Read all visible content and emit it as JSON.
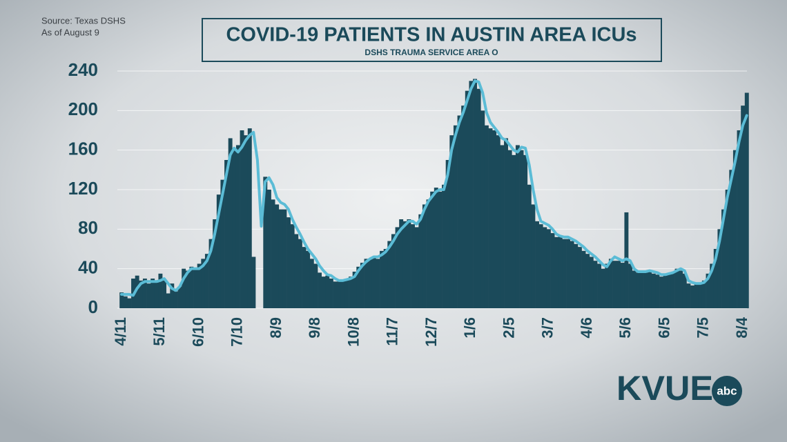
{
  "chart_data": {
    "type": "bar-line",
    "title": "COVID-19 PATIENTS IN AUSTIN AREA ICUs",
    "subtitle": "DSHS TRAUMA SERVICE AREA O",
    "annotations": [
      "Source: Texas DSHS",
      "As of August 9"
    ],
    "logo": {
      "text": "KVUE",
      "badge": "abc"
    },
    "categories": [
      "4/11",
      null,
      null,
      null,
      null,
      null,
      null,
      null,
      null,
      null,
      "5/11",
      null,
      null,
      null,
      null,
      null,
      null,
      null,
      null,
      null,
      "6/10",
      null,
      null,
      null,
      null,
      null,
      null,
      null,
      null,
      null,
      "7/10",
      null,
      null,
      null,
      null,
      null,
      null,
      null,
      null,
      null,
      "8/9",
      null,
      null,
      null,
      null,
      null,
      null,
      null,
      null,
      null,
      "9/8",
      null,
      null,
      null,
      null,
      null,
      null,
      null,
      null,
      null,
      "10/8",
      null,
      null,
      null,
      null,
      null,
      null,
      null,
      null,
      null,
      "11/7",
      null,
      null,
      null,
      null,
      null,
      null,
      null,
      null,
      null,
      "12/7",
      null,
      null,
      null,
      null,
      null,
      null,
      null,
      null,
      null,
      "1/6",
      null,
      null,
      null,
      null,
      null,
      null,
      null,
      null,
      null,
      "2/5",
      null,
      null,
      null,
      null,
      null,
      null,
      null,
      null,
      null,
      "3/7",
      null,
      null,
      null,
      null,
      null,
      null,
      null,
      null,
      null,
      "4/6",
      null,
      null,
      null,
      null,
      null,
      null,
      null,
      null,
      null,
      "5/6",
      null,
      null,
      null,
      null,
      null,
      null,
      null,
      null,
      null,
      "6/5",
      null,
      null,
      null,
      null,
      null,
      null,
      null,
      null,
      null,
      "7/5",
      null,
      null,
      null,
      null,
      null,
      null,
      null,
      null,
      null,
      "8/4",
      null
    ],
    "series": [
      {
        "type": "bar",
        "color": "#1b4a5a",
        "values": [
          16,
          12,
          10,
          30,
          33,
          28,
          30,
          25,
          30,
          26,
          35,
          28,
          15,
          25,
          17,
          22,
          40,
          38,
          42,
          40,
          45,
          50,
          55,
          70,
          90,
          115,
          130,
          150,
          172,
          160,
          165,
          180,
          175,
          182,
          52,
          null,
          null,
          133,
          120,
          110,
          105,
          100,
          100,
          92,
          85,
          75,
          70,
          62,
          58,
          50,
          45,
          36,
          32,
          33,
          30,
          27,
          27,
          28,
          30,
          32,
          37,
          42,
          46,
          50,
          50,
          52,
          50,
          58,
          60,
          68,
          75,
          82,
          90,
          88,
          90,
          85,
          82,
          95,
          105,
          110,
          118,
          122,
          118,
          125,
          150,
          175,
          185,
          195,
          205,
          220,
          230,
          232,
          222,
          200,
          185,
          182,
          180,
          175,
          165,
          172,
          160,
          155,
          165,
          160,
          155,
          125,
          105,
          88,
          85,
          82,
          80,
          76,
          72,
          73,
          70,
          70,
          68,
          65,
          62,
          58,
          55,
          52,
          48,
          45,
          40,
          45,
          50,
          48,
          48,
          46,
          97,
          45,
          38,
          36,
          37,
          36,
          38,
          35,
          34,
          32,
          33,
          35,
          37,
          40,
          38,
          35,
          25,
          23,
          24,
          25,
          28,
          35,
          45,
          60,
          80,
          100,
          120,
          140,
          160,
          180,
          205,
          218
        ]
      },
      {
        "type": "line",
        "color": "#5bbcd6",
        "values": [
          14,
          14,
          14,
          13,
          20,
          25,
          27,
          27,
          27,
          27,
          28,
          30,
          25,
          20,
          18,
          22,
          30,
          36,
          40,
          40,
          40,
          43,
          48,
          58,
          75,
          95,
          115,
          135,
          155,
          162,
          158,
          163,
          170,
          175,
          178,
          150,
          83,
          128,
          132,
          125,
          112,
          107,
          105,
          100,
          90,
          82,
          75,
          67,
          60,
          55,
          50,
          43,
          38,
          34,
          33,
          30,
          28,
          28,
          29,
          30,
          32,
          38,
          43,
          47,
          50,
          52,
          52,
          54,
          57,
          62,
          68,
          75,
          80,
          84,
          88,
          88,
          85,
          90,
          100,
          108,
          113,
          118,
          120,
          120,
          135,
          160,
          175,
          188,
          198,
          210,
          222,
          230,
          229,
          218,
          198,
          188,
          183,
          178,
          172,
          170,
          165,
          160,
          158,
          163,
          162,
          145,
          120,
          100,
          88,
          86,
          84,
          80,
          75,
          73,
          72,
          72,
          70,
          68,
          65,
          62,
          58,
          55,
          52,
          48,
          44,
          42,
          48,
          52,
          50,
          48,
          50,
          48,
          40,
          37,
          37,
          37,
          38,
          37,
          36,
          34,
          34,
          35,
          36,
          38,
          40,
          38,
          28,
          26,
          25,
          25,
          26,
          30,
          38,
          50,
          68,
          90,
          112,
          130,
          148,
          168,
          185,
          195
        ]
      }
    ],
    "ylim": [
      0,
      240
    ],
    "yticks": [
      0,
      40,
      80,
      120,
      160,
      200,
      240
    ],
    "grid": true
  }
}
